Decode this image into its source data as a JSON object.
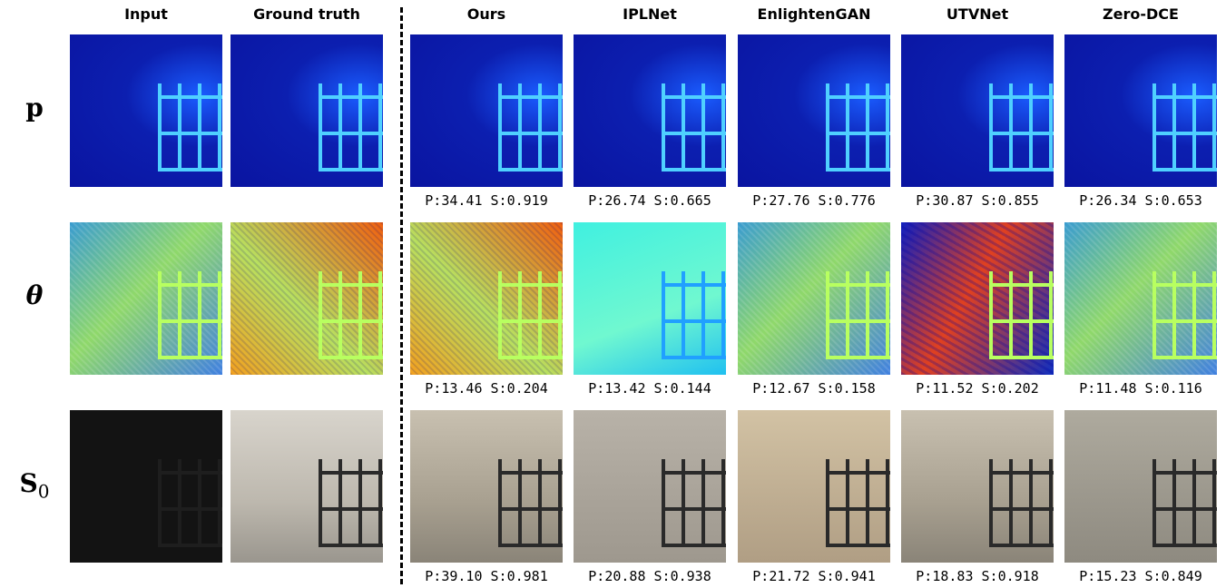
{
  "columns": [
    "Input",
    "Ground truth",
    "Ours",
    "IPLNet",
    "EnlightenGAN",
    "UTVNet",
    "Zero-DCE"
  ],
  "rows": [
    {
      "label": {
        "symbol": "p"
      },
      "captions": [
        "P:34.41 S:0.919",
        "P:26.74 S:0.665",
        "P:27.76 S:0.776",
        "P:30.87 S:0.855",
        "P:26.34 S:0.653"
      ]
    },
    {
      "label": {
        "symbol": "θ"
      },
      "captions": [
        "P:13.46 S:0.204",
        "P:13.42 S:0.144",
        "P:12.67 S:0.158",
        "P:11.52 S:0.202",
        "P:11.48 S:0.116"
      ]
    },
    {
      "label": {
        "symbol": "S",
        "subscript": "0"
      },
      "captions": [
        "P:39.10 S:0.981",
        "P:20.88 S:0.938",
        "P:21.72 S:0.941",
        "P:18.83 S:0.918",
        "P:15.23 S:0.849"
      ]
    }
  ]
}
